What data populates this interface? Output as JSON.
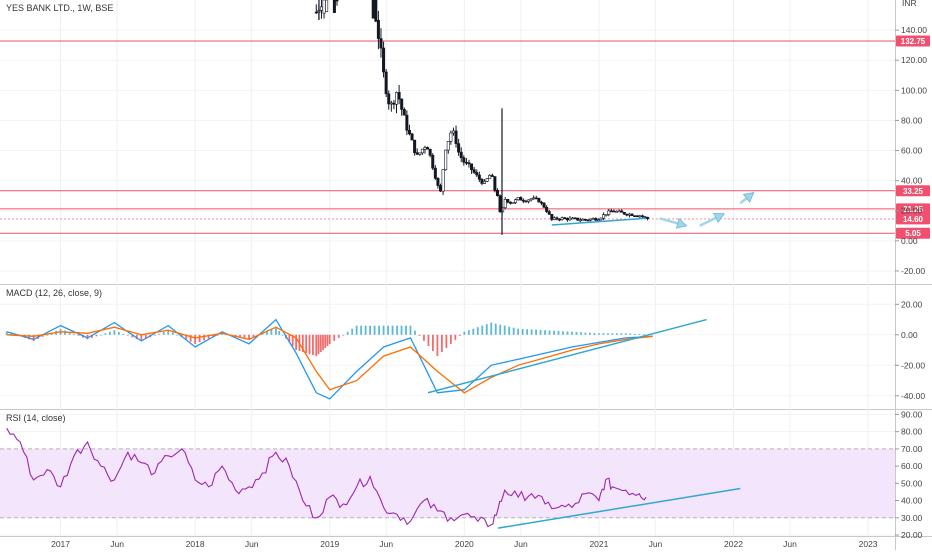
{
  "app": {
    "symbol": "YES BANK LTD., 1W, BSE",
    "currency": "INR"
  },
  "colors": {
    "level_line": "#f0506e",
    "candle": "#131722",
    "trend_line": "#2fa8d4",
    "macd_line": "#2196f3",
    "signal_line": "#ff6d00",
    "hist_up": "#26a0c8",
    "hist_down": "#ef3b3b",
    "rsi_line": "#9c27b0",
    "rsi_band": "#f3e5fb"
  },
  "x_axis": {
    "ticks": [
      {
        "t": 2017.0,
        "label": "2017"
      },
      {
        "t": 2017.42,
        "label": "Jun"
      },
      {
        "t": 2018.0,
        "label": "2018"
      },
      {
        "t": 2018.42,
        "label": "Jun"
      },
      {
        "t": 2019.0,
        "label": "2019"
      },
      {
        "t": 2019.42,
        "label": "Jun"
      },
      {
        "t": 2020.0,
        "label": "2020"
      },
      {
        "t": 2020.42,
        "label": "Jun"
      },
      {
        "t": 2021.0,
        "label": "2021"
      },
      {
        "t": 2021.42,
        "label": "Jun"
      },
      {
        "t": 2022.0,
        "label": "2022"
      },
      {
        "t": 2022.42,
        "label": "Jun"
      },
      {
        "t": 2023.0,
        "label": "2023"
      }
    ]
  },
  "chart_data": [
    {
      "type": "candlestick",
      "title": "YES BANK LTD., 1W, BSE",
      "ylim": [
        -28,
        160
      ],
      "y_ticks": [
        "-20.00",
        "0.00",
        "20.00",
        "40.00",
        "60.00",
        "80.00",
        "100.00",
        "120.00",
        "140.00"
      ],
      "levels": [
        {
          "value": 132.75,
          "label": "132.75"
        },
        {
          "value": 33.25,
          "label": "33.25"
        },
        {
          "value": 21.25,
          "label": "21.25"
        },
        {
          "value": 14.6,
          "label": "14.60"
        },
        {
          "value": 5.05,
          "label": "5.05"
        }
      ],
      "price_path": [
        [
          2018.9,
          152
        ],
        [
          2019.0,
          175
        ],
        [
          2019.1,
          168
        ],
        [
          2019.2,
          190
        ],
        [
          2019.3,
          175
        ],
        [
          2019.35,
          145
        ],
        [
          2019.4,
          110
        ],
        [
          2019.45,
          88
        ],
        [
          2019.5,
          100
        ],
        [
          2019.55,
          82
        ],
        [
          2019.6,
          68
        ],
        [
          2019.65,
          56
        ],
        [
          2019.72,
          65
        ],
        [
          2019.78,
          45
        ],
        [
          2019.82,
          30
        ],
        [
          2019.86,
          62
        ],
        [
          2019.9,
          72
        ],
        [
          2019.93,
          70
        ],
        [
          2019.96,
          58
        ],
        [
          2020.0,
          52
        ],
        [
          2020.05,
          48
        ],
        [
          2020.1,
          42
        ],
        [
          2020.15,
          38
        ],
        [
          2020.2,
          45
        ],
        [
          2020.22,
          35
        ],
        [
          2020.25,
          30
        ],
        [
          2020.27,
          15
        ],
        [
          2020.3,
          28
        ],
        [
          2020.35,
          25
        ],
        [
          2020.4,
          28
        ],
        [
          2020.45,
          27
        ],
        [
          2020.5,
          28
        ],
        [
          2020.55,
          27
        ],
        [
          2020.6,
          22
        ],
        [
          2020.65,
          14
        ],
        [
          2020.7,
          15
        ],
        [
          2020.8,
          14.5
        ],
        [
          2020.9,
          14
        ],
        [
          2021.0,
          15
        ],
        [
          2021.05,
          18
        ],
        [
          2021.1,
          20
        ],
        [
          2021.2,
          18
        ],
        [
          2021.3,
          17
        ],
        [
          2021.35,
          15
        ],
        [
          2021.38,
          14.6
        ]
      ],
      "spikes": [
        {
          "t": 2020.28,
          "high": 88,
          "low": 4
        }
      ],
      "projection_arrows": [
        {
          "from": [
            2021.45,
            15
          ],
          "to": [
            2021.65,
            10
          ]
        },
        {
          "from": [
            2021.75,
            10
          ],
          "to": [
            2021.93,
            18
          ]
        },
        {
          "from": [
            2022.05,
            25
          ],
          "to": [
            2022.15,
            32
          ]
        }
      ],
      "base_trend": {
        "from": [
          2020.65,
          10.5
        ],
        "to": [
          2021.35,
          15
        ]
      }
    },
    {
      "type": "line",
      "title": "MACD (12, 26, close, 9)",
      "ylim": [
        -48,
        32
      ],
      "y_ticks": [
        "-40.00",
        "-20.00",
        "0.00",
        "20.00"
      ],
      "series": [
        {
          "name": "MACD",
          "x": [
            2016.6,
            2016.8,
            2017.0,
            2017.2,
            2017.4,
            2017.6,
            2017.8,
            2018.0,
            2018.2,
            2018.4,
            2018.6,
            2018.75,
            2018.9,
            2019.0,
            2019.2,
            2019.4,
            2019.6,
            2019.8,
            2020.0,
            2020.2,
            2020.4,
            2020.6,
            2020.8,
            2021.0,
            2021.2,
            2021.4
          ],
          "y": [
            2,
            -3,
            6,
            -2,
            8,
            -4,
            6,
            -8,
            2,
            -6,
            10,
            -12,
            -38,
            -42,
            -24,
            -8,
            -2,
            -38,
            -36,
            -20,
            -16,
            -12,
            -8,
            -5,
            -2,
            -1
          ]
        },
        {
          "name": "Signal",
          "x": [
            2016.6,
            2016.8,
            2017.0,
            2017.2,
            2017.4,
            2017.6,
            2017.8,
            2018.0,
            2018.2,
            2018.4,
            2018.6,
            2018.75,
            2018.9,
            2019.0,
            2019.2,
            2019.4,
            2019.6,
            2019.8,
            2020.0,
            2020.2,
            2020.4,
            2020.6,
            2020.8,
            2021.0,
            2021.2,
            2021.4
          ],
          "y": [
            0,
            -1,
            2,
            1,
            5,
            0,
            3,
            -2,
            1,
            -3,
            5,
            -2,
            -24,
            -36,
            -30,
            -14,
            -8,
            -24,
            -38,
            -28,
            -20,
            -15,
            -10,
            -6,
            -3,
            -1
          ]
        }
      ],
      "histogram": {
        "x": [
          2016.6,
          2016.8,
          2017.0,
          2017.2,
          2017.4,
          2017.6,
          2017.8,
          2018.0,
          2018.2,
          2018.4,
          2018.6,
          2018.75,
          2018.9,
          2019.0,
          2019.2,
          2019.4,
          2019.6,
          2019.8,
          2020.0,
          2020.2,
          2020.4,
          2020.6,
          2020.8,
          2021.0,
          2021.2,
          2021.4
        ],
        "y": [
          2,
          -4,
          4,
          -3,
          3,
          -4,
          3,
          -6,
          1,
          -3,
          5,
          -10,
          -14,
          -6,
          6,
          6,
          6,
          -14,
          2,
          8,
          4,
          3,
          2,
          1,
          1,
          0
        ]
      },
      "trend_line": {
        "from": [
          2019.73,
          -38
        ],
        "to": [
          2021.8,
          10
        ]
      }
    },
    {
      "type": "line",
      "title": "RSI (14, close)",
      "ylim": [
        20,
        92
      ],
      "y_ticks": [
        "20.00",
        "30.00",
        "40.00",
        "50.00",
        "60.00",
        "70.00",
        "80.00",
        "90.00"
      ],
      "band": [
        30,
        70
      ],
      "series": [
        {
          "name": "RSI",
          "x": [
            2016.6,
            2016.7,
            2016.8,
            2016.9,
            2017.0,
            2017.1,
            2017.2,
            2017.3,
            2017.4,
            2017.5,
            2017.6,
            2017.7,
            2017.8,
            2017.9,
            2018.0,
            2018.1,
            2018.2,
            2018.3,
            2018.4,
            2018.5,
            2018.6,
            2018.7,
            2018.8,
            2018.9,
            2019.0,
            2019.1,
            2019.2,
            2019.3,
            2019.4,
            2019.5,
            2019.6,
            2019.7,
            2019.8,
            2019.9,
            2020.0,
            2020.1,
            2020.2,
            2020.25,
            2020.3,
            2020.4,
            2020.5,
            2020.6,
            2020.7,
            2020.8,
            2020.9,
            2021.0,
            2021.05,
            2021.1,
            2021.2,
            2021.3,
            2021.35
          ],
          "y": [
            82,
            74,
            52,
            58,
            48,
            66,
            74,
            60,
            52,
            68,
            62,
            56,
            66,
            70,
            52,
            48,
            60,
            46,
            48,
            56,
            68,
            60,
            40,
            30,
            42,
            38,
            48,
            54,
            36,
            32,
            28,
            40,
            34,
            30,
            32,
            28,
            26,
            35,
            46,
            42,
            44,
            38,
            36,
            36,
            44,
            40,
            52,
            48,
            46,
            44,
            42
          ]
        }
      ],
      "trend_line": {
        "from": [
          2020.25,
          24
        ],
        "to": [
          2022.05,
          47
        ]
      }
    }
  ]
}
